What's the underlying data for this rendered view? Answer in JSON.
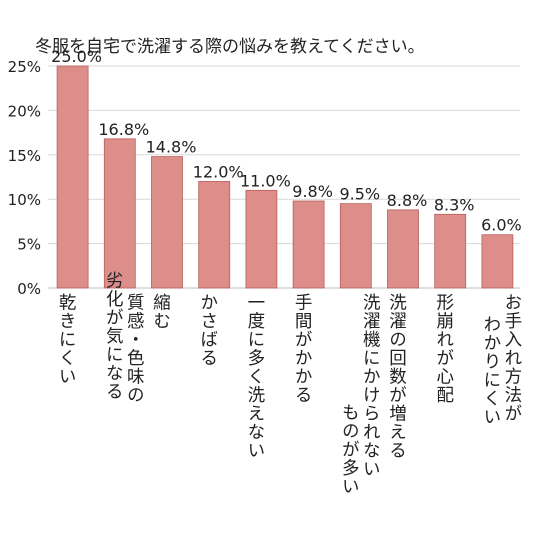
{
  "chart_data": {
    "type": "bar",
    "title": "冬服を自宅で洗濯する際の悩みを教えてください。",
    "categories": [
      "乾きにくい",
      "質感・色味の劣化が気になる",
      "縮む",
      "かさばる",
      "一度に多く洗えない",
      "手間がかかる",
      "洗濯機にかけられないものが多い",
      "洗濯の回数が増える",
      "形崩れが心配",
      "お手入れ方法がわかりにくい"
    ],
    "category_lines": [
      [
        "乾きにくい"
      ],
      [
        "質感・色味の",
        "劣化が気になる"
      ],
      [
        "縮む"
      ],
      [
        "かさばる"
      ],
      [
        "一度に多く洗えない"
      ],
      [
        "手間がかかる"
      ],
      [
        "洗濯機にかけられない",
        "ものが多い"
      ],
      [
        "洗濯の回数が増える"
      ],
      [
        "形崩れが心配"
      ],
      [
        "お手入れ方法が",
        "わかりにくい"
      ]
    ],
    "values": [
      25.0,
      16.8,
      14.8,
      12.0,
      11.0,
      9.8,
      9.5,
      8.8,
      8.3,
      6.0
    ],
    "value_labels": [
      "25.0%",
      "16.8%",
      "14.8%",
      "12.0%",
      "11.0%",
      "9.8%",
      "9.5%",
      "8.8%",
      "8.3%",
      "6.0%"
    ],
    "yticks": [
      "0%",
      "5%",
      "10%",
      "15%",
      "20%",
      "25%"
    ],
    "ylim": [
      0,
      25
    ],
    "grid": true,
    "bar_color": "#dd8e8a",
    "bar_edge_color": "#b85f5b",
    "grid_color": "#d9d9d9"
  }
}
